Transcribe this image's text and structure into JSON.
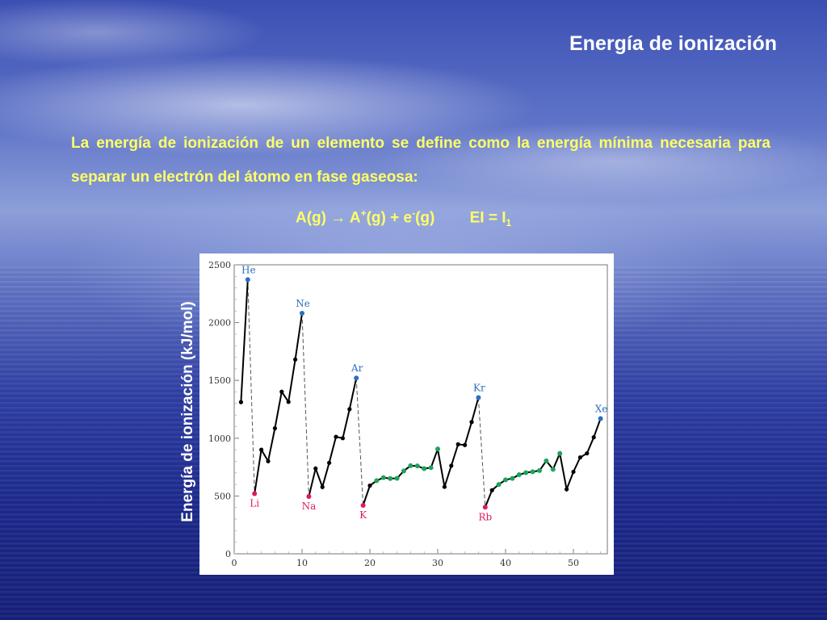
{
  "slide": {
    "title": "Energía de ionización",
    "definition": "La energía de ionización de un elemento se define como la energía mínima necesaria para separar un electrón del átomo en fase gaseosa:",
    "equation": {
      "lhs": "A(g) ",
      "arrow": "→",
      "product": " A",
      "product_charge": "+",
      "state1": "(g) + e",
      "electron_charge": "-",
      "state2": "(g)",
      "ei_label": "EI = I",
      "ei_subscript": "1"
    }
  },
  "chart_data": {
    "type": "line",
    "xlabel": "",
    "ylabel": "Energía de ionización (kJ/mol)",
    "xlim": [
      0,
      55
    ],
    "ylim": [
      0,
      2500
    ],
    "x_ticks": [
      0,
      10,
      20,
      30,
      40,
      50
    ],
    "y_ticks": [
      0,
      500,
      1000,
      1500,
      2000,
      2500
    ],
    "colors": {
      "line": "#000000",
      "noble_gas": "#2a6fc0",
      "alkali": "#e0195a",
      "transition": "#1fa35a",
      "dash": "#555555"
    },
    "segments": [
      [
        [
          1,
          1312
        ],
        [
          2,
          2372
        ]
      ],
      [
        [
          3,
          520
        ],
        [
          4,
          900
        ],
        [
          5,
          801
        ],
        [
          6,
          1086
        ],
        [
          7,
          1402
        ],
        [
          8,
          1314
        ],
        [
          9,
          1681
        ],
        [
          10,
          2081
        ]
      ],
      [
        [
          11,
          496
        ],
        [
          12,
          738
        ],
        [
          13,
          578
        ],
        [
          14,
          787
        ],
        [
          15,
          1012
        ],
        [
          16,
          1000
        ],
        [
          17,
          1251
        ],
        [
          18,
          1521
        ]
      ],
      [
        [
          19,
          419
        ],
        [
          20,
          590
        ],
        [
          21,
          633
        ],
        [
          22,
          659
        ],
        [
          23,
          651
        ],
        [
          24,
          653
        ],
        [
          25,
          717
        ],
        [
          26,
          762
        ],
        [
          27,
          760
        ],
        [
          28,
          737
        ],
        [
          29,
          745
        ],
        [
          30,
          906
        ],
        [
          31,
          579
        ],
        [
          32,
          762
        ],
        [
          33,
          947
        ],
        [
          34,
          941
        ],
        [
          35,
          1140
        ],
        [
          36,
          1351
        ]
      ],
      [
        [
          37,
          403
        ],
        [
          38,
          550
        ],
        [
          39,
          600
        ],
        [
          40,
          640
        ],
        [
          41,
          652
        ],
        [
          42,
          684
        ],
        [
          43,
          702
        ],
        [
          44,
          710
        ],
        [
          45,
          720
        ],
        [
          46,
          804
        ],
        [
          47,
          731
        ],
        [
          48,
          868
        ],
        [
          49,
          558
        ],
        [
          50,
          709
        ],
        [
          51,
          834
        ],
        [
          52,
          869
        ],
        [
          53,
          1008
        ],
        [
          54,
          1170
        ]
      ]
    ],
    "transition_metals": [
      21,
      22,
      23,
      24,
      25,
      26,
      27,
      28,
      29,
      30,
      39,
      40,
      41,
      42,
      43,
      44,
      45,
      46,
      47,
      48
    ],
    "drops": [
      [
        2,
        3
      ],
      [
        10,
        11
      ],
      [
        18,
        19
      ],
      [
        36,
        37
      ]
    ],
    "element_labels": [
      {
        "z": 2,
        "label": "He",
        "group": "noble"
      },
      {
        "z": 10,
        "label": "Ne",
        "group": "noble"
      },
      {
        "z": 18,
        "label": "Ar",
        "group": "noble"
      },
      {
        "z": 36,
        "label": "Kr",
        "group": "noble"
      },
      {
        "z": 54,
        "label": "Xe",
        "group": "noble"
      },
      {
        "z": 3,
        "label": "Li",
        "group": "alkali"
      },
      {
        "z": 11,
        "label": "Na",
        "group": "alkali"
      },
      {
        "z": 19,
        "label": "K",
        "group": "alkali"
      },
      {
        "z": 37,
        "label": "Rb",
        "group": "alkali"
      }
    ]
  }
}
